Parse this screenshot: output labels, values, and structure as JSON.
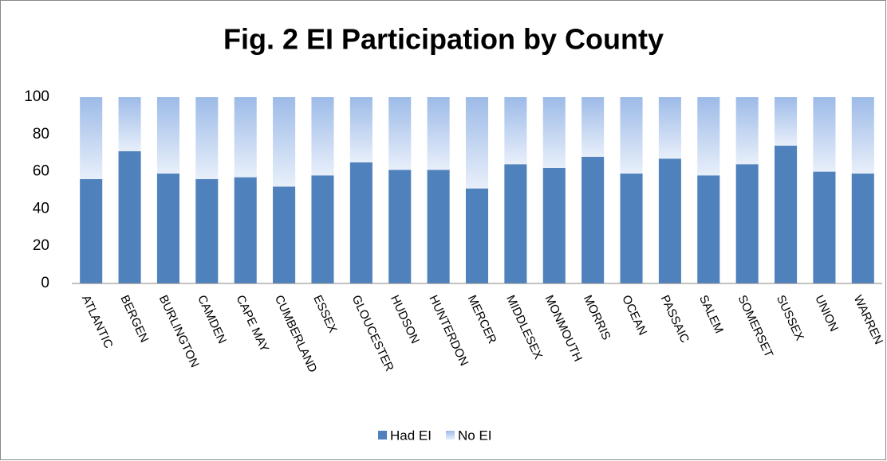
{
  "chart_data": {
    "type": "stacked_bar",
    "title": "Fig. 2 EI Participation by County",
    "categories": [
      "ATLANTIC",
      "BERGEN",
      "BURLINGTON",
      "CAMDEN",
      "CAPE MAY",
      "CUMBERLAND",
      "ESSEX",
      "GLOUCESTER",
      "HUDSON",
      "HUNTERDON",
      "MERCER",
      "MIDDLESEX",
      "MONMOUTH",
      "MORRIS",
      "OCEAN",
      "PASSAIC",
      "SALEM",
      "SOMERSET",
      "SUSSEX",
      "UNION",
      "WARREN"
    ],
    "series": [
      {
        "name": "Had EI",
        "color": "#4f81bd",
        "values": [
          56,
          71,
          59,
          56,
          57,
          52,
          58,
          65,
          61,
          61,
          51,
          64,
          62,
          68,
          59,
          67,
          58,
          64,
          74,
          60,
          59
        ]
      },
      {
        "name": "No EI",
        "color": "#b9cdee",
        "values": [
          44,
          29,
          41,
          44,
          43,
          48,
          42,
          35,
          39,
          39,
          49,
          36,
          38,
          32,
          41,
          33,
          42,
          36,
          26,
          40,
          41
        ]
      }
    ],
    "ylim": [
      0,
      100
    ],
    "yticks": [
      0,
      20,
      40,
      60,
      80,
      100
    ],
    "grid": false,
    "legend": "bottom"
  }
}
